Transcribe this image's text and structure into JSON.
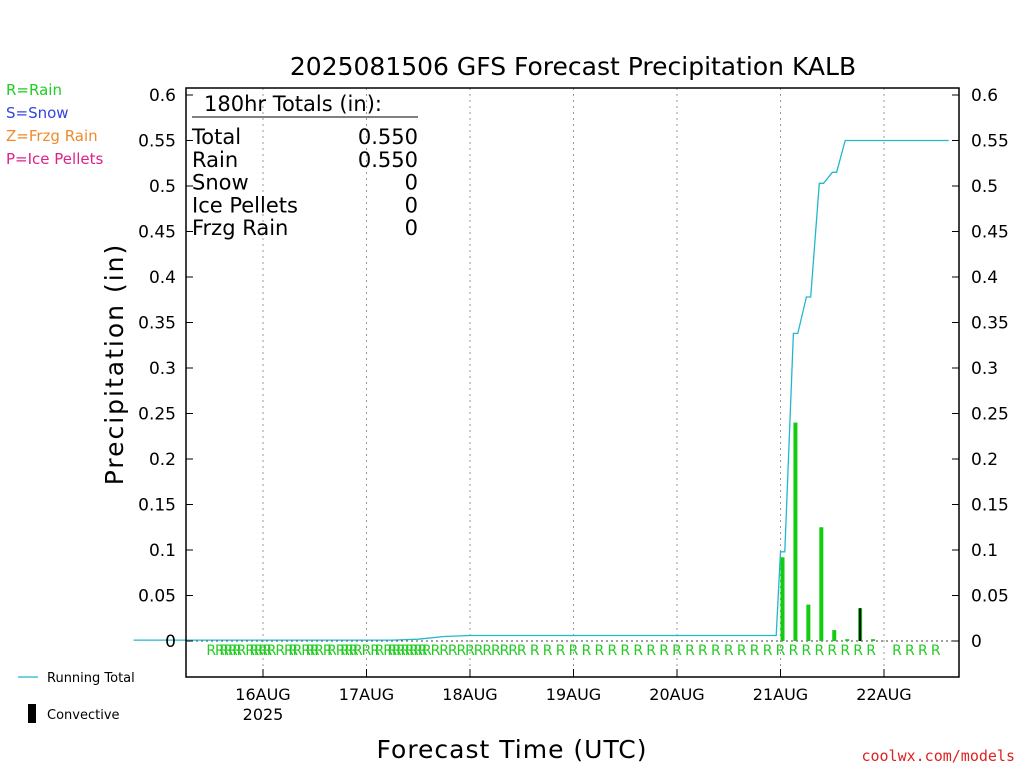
{
  "title": "2025081506 GFS Forecast Precipitation KALB",
  "key": [
    {
      "text": "R=Rain",
      "color": "#22cc22"
    },
    {
      "text": "S=Snow",
      "color": "#3344dd"
    },
    {
      "text": "Z=Frzg Rain",
      "color": "#f08a2c"
    },
    {
      "text": "P=Ice Pellets",
      "color": "#e0208a"
    }
  ],
  "totals": {
    "heading": "180hr Totals (in):",
    "rows": [
      {
        "label": "Total",
        "value": "0.550"
      },
      {
        "label": "Rain",
        "value": "0.550"
      },
      {
        "label": "Snow",
        "value": "0"
      },
      {
        "label": "Ice Pellets",
        "value": "0"
      },
      {
        "label": "Frzg Rain",
        "value": "0"
      }
    ]
  },
  "legend": {
    "running_total": "Running Total",
    "convective": "Convective",
    "running_color": "#22b8cc",
    "convective_color": "#000000"
  },
  "credit": "coolwx.com/models",
  "credit_color": "#dd2222",
  "chart_data": {
    "type": "bar",
    "title": "2025081506 GFS Forecast Precipitation KALB",
    "xlabel": "Forecast Time (UTC)",
    "ylabel": "Precipitation (in)",
    "ylim": [
      0,
      0.6
    ],
    "yticks": [
      0,
      0.05,
      0.1,
      0.15,
      0.2,
      0.25,
      0.3,
      0.35,
      0.4,
      0.45,
      0.5,
      0.55,
      0.6
    ],
    "ytick_labels": [
      "0",
      "0.05",
      "0.1",
      "0.15",
      "0.2",
      "0.25",
      "0.3",
      "0.35",
      "0.4",
      "0.45",
      "0.5",
      "0.55",
      "0.6"
    ],
    "xlim_hours": [
      -12,
      177
    ],
    "x_ticks": [
      {
        "hour": 18,
        "label": "16AUG",
        "sub": "2025"
      },
      {
        "hour": 42,
        "label": "17AUG",
        "sub": ""
      },
      {
        "hour": 66,
        "label": "18AUG",
        "sub": ""
      },
      {
        "hour": 90,
        "label": "19AUG",
        "sub": ""
      },
      {
        "hour": 114,
        "label": "20AUG",
        "sub": ""
      },
      {
        "hour": 138,
        "label": "21AUG",
        "sub": ""
      },
      {
        "hour": 162,
        "label": "22AUG",
        "sub": ""
      }
    ],
    "grid": "vertical dotted",
    "bar_color": "#11cc11",
    "series": [
      {
        "name": "Precipitation",
        "hours": [
          138,
          141,
          144,
          147,
          150,
          153,
          156,
          159
        ],
        "values": [
          0.092,
          0.24,
          0.04,
          0.125,
          0.012,
          0.002,
          0.036,
          0.002
        ],
        "convective": [
          0,
          0,
          0,
          0,
          0,
          0,
          0.036,
          0
        ]
      },
      {
        "name": "Running Total",
        "hours": [
          -12,
          48,
          54,
          60,
          66,
          137,
          138,
          139,
          141,
          142,
          144,
          145,
          147,
          148,
          150,
          151,
          153,
          177
        ],
        "values": [
          0.001,
          0.001,
          0.002,
          0.005,
          0.006,
          0.006,
          0.098,
          0.098,
          0.338,
          0.338,
          0.378,
          0.378,
          0.503,
          0.503,
          0.515,
          0.515,
          0.55,
          0.55
        ]
      }
    ],
    "ptype_hours": [
      6,
      8,
      9,
      10,
      11,
      12,
      13,
      15,
      16,
      17,
      18,
      19,
      20,
      22,
      24,
      25,
      26,
      28,
      29,
      30,
      31,
      33,
      34,
      36,
      37,
      38,
      39,
      40,
      42,
      44,
      45,
      47,
      48,
      49,
      50,
      51,
      52,
      53,
      54,
      55,
      56,
      58,
      60,
      62,
      64,
      66,
      68,
      70,
      72,
      74,
      76,
      78,
      81,
      84,
      87,
      90,
      93,
      96,
      99,
      102,
      105,
      108,
      111,
      114,
      117,
      120,
      123,
      126,
      129,
      132,
      135,
      138,
      141,
      144,
      147,
      150,
      153,
      156,
      159,
      165,
      168,
      171,
      174
    ],
    "ptype_label": "R"
  }
}
